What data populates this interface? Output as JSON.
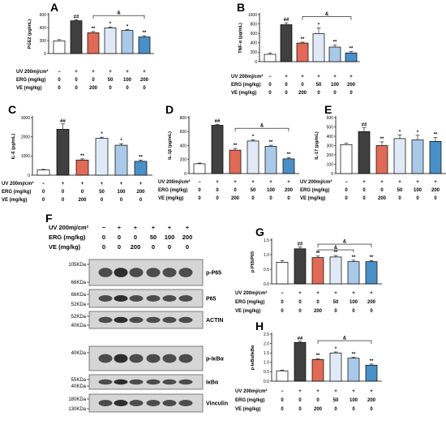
{
  "colors": {
    "control": "#ffffff",
    "uv": "#404040",
    "ve": "#e06a56",
    "erg50": "#dfeaf6",
    "erg100": "#a9c9e8",
    "erg200": "#4a90c8",
    "stroke": "#000000"
  },
  "row_labels": {
    "uv": "UV 200mj/cm²",
    "erg": "ERG (mg/kg)",
    "ve": "VE (mg/kg)"
  },
  "treatment_values": {
    "uv": [
      "−",
      "+",
      "+",
      "+",
      "+",
      "+"
    ],
    "erg": [
      "0",
      "0",
      "0",
      "50",
      "100",
      "200"
    ],
    "ve": [
      "0",
      "0",
      "200",
      "0",
      "0",
      "0"
    ]
  },
  "chart_data": [
    {
      "panel": "A",
      "type": "bar",
      "ylabel": "PGE2 (pg/mL)",
      "ylim": [
        0,
        600
      ],
      "yticks": [
        "0",
        "200",
        "400",
        "600"
      ],
      "values": [
        195,
        505,
        320,
        395,
        355,
        255
      ],
      "errors": [
        20,
        15,
        20,
        15,
        15,
        20
      ],
      "annotations": [
        "",
        "##",
        "**",
        "*",
        "*",
        "**"
      ],
      "bracket": {
        "from": 2,
        "to": 5,
        "label": "&"
      }
    },
    {
      "panel": "B",
      "type": "bar",
      "ylabel": "TNF-α (pg/mL)",
      "ylim": [
        0,
        1000
      ],
      "yticks": [
        "0",
        "200",
        "400",
        "600",
        "800",
        "1000"
      ],
      "values": [
        155,
        785,
        395,
        595,
        310,
        185
      ],
      "errors": [
        25,
        40,
        20,
        120,
        40,
        30
      ],
      "annotations": [
        "",
        "##",
        "**",
        "*",
        "**",
        "**"
      ],
      "bracket": {
        "from": 2,
        "to": 5,
        "label": "&"
      }
    },
    {
      "panel": "C",
      "type": "bar",
      "ylabel": "IL-6 (pg/mL)",
      "ylim": [
        0,
        3000
      ],
      "yticks": [
        "0",
        "1000",
        "2000",
        "3000"
      ],
      "values": [
        270,
        2390,
        790,
        1920,
        1560,
        720
      ],
      "errors": [
        30,
        280,
        60,
        60,
        80,
        60
      ],
      "annotations": [
        "",
        "##",
        "**",
        "*",
        "*",
        "**"
      ],
      "bracket": null
    },
    {
      "panel": "D",
      "type": "bar",
      "ylabel": "IL-1β (pg/mL)",
      "ylim": [
        0,
        800
      ],
      "yticks": [
        "0",
        "200",
        "400",
        "600",
        "800"
      ],
      "values": [
        140,
        690,
        335,
        465,
        390,
        210
      ],
      "errors": [
        10,
        15,
        25,
        20,
        15,
        20
      ],
      "annotations": [
        "",
        "##",
        "**",
        "*",
        "**",
        "**"
      ],
      "bracket": {
        "from": 2,
        "to": 5,
        "label": "&"
      }
    },
    {
      "panel": "E",
      "type": "bar",
      "ylabel": "IL-17 (pg/mL)",
      "ylim": [
        0,
        600
      ],
      "yticks": [
        "0",
        "100",
        "200",
        "300",
        "400",
        "500",
        "600"
      ],
      "values": [
        310,
        450,
        300,
        375,
        360,
        345
      ],
      "errors": [
        15,
        40,
        40,
        40,
        50,
        40
      ],
      "annotations": [
        "",
        "##",
        "**",
        "*",
        "*",
        "**"
      ],
      "bracket": null
    },
    {
      "panel": "G",
      "type": "bar",
      "ylabel": "p-P65/P65",
      "ylim": [
        0,
        1.5
      ],
      "yticks": [
        "0.0",
        "0.5",
        "1.0",
        "1.5"
      ],
      "values": [
        0.74,
        1.2,
        0.9,
        0.92,
        0.76,
        0.76
      ],
      "errors": [
        0.06,
        0.07,
        0.05,
        0.05,
        0.05,
        0.04
      ],
      "annotations": [
        "",
        "##",
        "**",
        "**",
        "**",
        "**"
      ],
      "bracket": {
        "from": 2,
        "to": 5,
        "label": "&",
        "inner_to": 4
      }
    },
    {
      "panel": "H",
      "type": "bar",
      "ylabel": "p-IκBα/IκBα",
      "ylim": [
        0,
        2.5
      ],
      "yticks": [
        "0.0",
        "0.5",
        "1.0",
        "1.5",
        "2.0",
        "2.5"
      ],
      "values": [
        0.55,
        2.06,
        1.15,
        1.5,
        1.22,
        0.85
      ],
      "errors": [
        0.04,
        0.06,
        0.05,
        0.05,
        0.05,
        0.06
      ],
      "annotations": [
        "",
        "##",
        "**",
        "*",
        "**",
        "**"
      ],
      "bracket": {
        "from": 2,
        "to": 5,
        "label": "&"
      }
    }
  ],
  "blot": {
    "panel": "F",
    "treatment_rows": [
      {
        "label": "UV 200mj/cm²",
        "values": [
          "−",
          "+",
          "+",
          "+",
          "+",
          "+"
        ]
      },
      {
        "label": "ERG (mg/kg)",
        "values": [
          "0",
          "0",
          "0",
          "50",
          "100",
          "200"
        ]
      },
      {
        "label": "VE (mg/kg)",
        "values": [
          "0",
          "0",
          "200",
          "0",
          "0",
          "0"
        ]
      }
    ],
    "strips": [
      {
        "name": "p-P65",
        "markers": [
          "105KDa",
          "66KDa"
        ]
      },
      {
        "name": "P65",
        "markers": [
          "66KDa",
          "52KDa"
        ]
      },
      {
        "name": "ACTIN",
        "markers": [
          "52KDa",
          "40KDa"
        ]
      },
      {
        "name": "p-IκBα",
        "markers": [
          "40KDa"
        ]
      },
      {
        "name": "IκBα",
        "markers": [
          "55KDa",
          "40KDa"
        ]
      },
      {
        "name": "Vinculin",
        "markers": [
          "180KDa",
          "130KDa"
        ]
      }
    ]
  }
}
